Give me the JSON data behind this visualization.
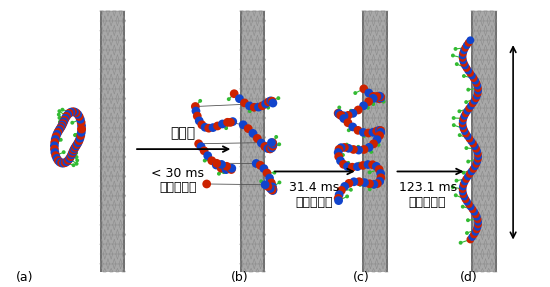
{
  "fig_width": 5.5,
  "fig_height": 2.87,
  "dpi": 100,
  "bg_color": "#ffffff",
  "panel_labels": [
    "(a)",
    "(b)",
    "(c)",
    "(d)"
  ],
  "panel_label_color": "#000000",
  "panel_label_fontsize": 9,
  "step_labels": [
    "ステップ１",
    "ステップ２",
    "ステップ３"
  ],
  "time_labels": [
    "< 30 ms",
    "31.4 ms",
    "123.1 ms"
  ],
  "arrow_label": "爆発相",
  "step_fontsize": 9,
  "time_fontsize": 9,
  "arrow_label_fontsize": 10,
  "cnt_color_main": "#a0a0a0",
  "cnt_color_dark": "#606060",
  "cnt_color_light": "#c8c8c8",
  "red_color": "#cc2200",
  "blue_color": "#1144cc",
  "green_color": "#33bb33",
  "arrow_color": "#000000"
}
